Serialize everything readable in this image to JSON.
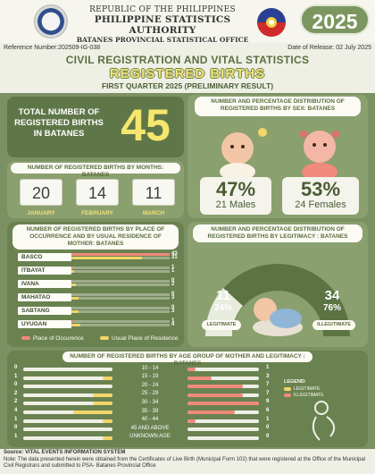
{
  "header": {
    "line1": "REPUBLIC OF THE PHILIPPINES",
    "line2": "PHILIPPINE STATISTICS AUTHORITY",
    "line3": "BATANES PROVINCIAL STATISTICAL OFFICE",
    "year": "2025",
    "reference": "Reference Number:202509-IG-038",
    "release": "Date of Release: 02 July 2025"
  },
  "titles": {
    "main": "CIVIL REGISTRATION AND VITAL STATISTICS",
    "sub": "REGISTERED BIRTHS",
    "period": "FIRST QUARTER 2025 (PRELIMINARY RESULT)"
  },
  "total": {
    "label": "TOTAL NUMBER OF REGISTERED BIRTHS IN BATANES",
    "value": "45"
  },
  "by_sex": {
    "title": "NUMBER AND PERCENTAGE DISTRIBUTION OF REGISTERED BIRTHS BY SEX: BATANES",
    "male_pct": "47%",
    "male_label": "21 Males",
    "female_pct": "53%",
    "female_label": "24 Females"
  },
  "by_month": {
    "title": "NUMBER OF REGISTERED BIRTHS BY MONTHS: BATANES",
    "months": [
      {
        "value": "20",
        "name": "JANUARY"
      },
      {
        "value": "14",
        "name": "FEBRUARY"
      },
      {
        "value": "11",
        "name": "MARCH"
      }
    ]
  },
  "by_place": {
    "title": "NUMBER OF REGISTERED BIRTHS BY PLACE OF OCCURRENCE AND BY USUAL RESIDENCE OF MOTHER: BATANES",
    "legend_occ": "Place of Occurence",
    "legend_res": "Usual Place of Residence",
    "colors": {
      "occurrence": "#f08a7a",
      "residence": "#f3d66a"
    }
  },
  "by_legitimacy": {
    "title": "NUMBER AND PERCENTAGE DISTRIBUTION OF REGISTERED BIRTHS BY LEGITIMACY : BATANES",
    "legit_value": "11",
    "legit_pct": "24%",
    "legit_label": "LEGITIMATE",
    "illegit_value": "34",
    "illegit_pct": "76%",
    "illegit_label": "ILLEGITIMATE"
  },
  "by_age": {
    "title": "NUMBER OF REGISTERED BIRTHS BY AGE GROUP OF MOTHER AND LEGITIMACY : BATANES",
    "legend_title": "LEGEND:",
    "legend_legit": "LEGITIMATE",
    "legend_illegit": "ILLEGITIMATE",
    "colors": {
      "legitimate": "#f3d66a",
      "illegitimate": "#f08a7a"
    }
  },
  "chart_data": [
    {
      "type": "bar",
      "categories": [
        "BASCO",
        "ITBAYAT",
        "IVANA",
        "MAHATAO",
        "SABTANG",
        "UYUGAN"
      ],
      "series": [
        {
          "name": "Place of Occurence",
          "values": [
            43,
            1,
            0,
            0,
            0,
            1
          ]
        },
        {
          "name": "Usual Place of Residence",
          "values": [
            31,
            1,
            2,
            3,
            3,
            4
          ]
        }
      ],
      "title": "NUMBER OF REGISTERED BIRTHS BY PLACE OF OCCURRENCE AND BY USUAL RESIDENCE OF MOTHER: BATANES",
      "xlim": [
        0,
        43
      ]
    },
    {
      "type": "bar",
      "categories": [
        "10 - 14",
        "15 - 19",
        "20 - 24",
        "25 - 29",
        "30 - 34",
        "35 - 39",
        "40 - 44",
        "45 AND ABOVE",
        "UNKNOWN AGE"
      ],
      "series": [
        {
          "name": "LEGITIMATE",
          "values": [
            0,
            1,
            0,
            2,
            2,
            4,
            1,
            0,
            1
          ]
        },
        {
          "name": "ILLEGITIMATE",
          "values": [
            1,
            3,
            7,
            7,
            9,
            6,
            1,
            0,
            0
          ]
        }
      ],
      "title": "NUMBER OF REGISTERED BIRTHS BY AGE GROUP OF MOTHER AND LEGITIMACY : BATANES",
      "xlim": [
        0,
        9
      ]
    }
  ],
  "source": {
    "line1": "Source: VITAL EVENTS INFORMATION SYSTEM",
    "line2": "Note: The data presented herein were obtained from the Certificates of Live Birth (Municipal Form 102) that were registered at the Office of the Municipal Civil Registrars and submitted to PSA- Batanes Provincial Office"
  }
}
